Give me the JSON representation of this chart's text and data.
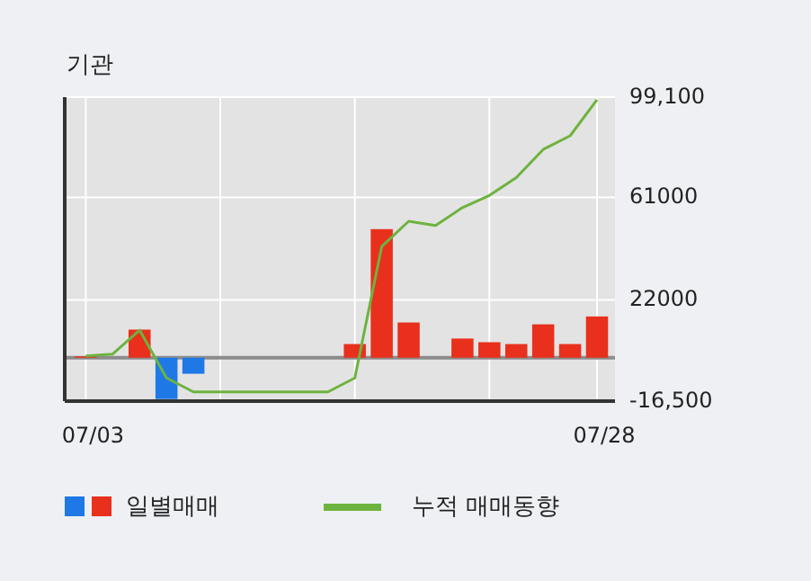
{
  "chart_data": {
    "type": "bar",
    "title": "기관",
    "categories": [
      "07/03",
      null,
      null,
      null,
      null,
      null,
      null,
      null,
      null,
      null,
      null,
      null,
      null,
      null,
      null,
      null,
      null,
      null,
      null,
      "07/28"
    ],
    "series": [
      {
        "name": "일별매매",
        "values": [
          500,
          0,
          10700,
          -15700,
          -6100,
          0,
          0,
          0,
          0,
          0,
          5200,
          48900,
          13400,
          0,
          7300,
          5900,
          5200,
          12700,
          5200,
          15700
        ],
        "colors": [
          "#e8301c",
          "#e8301c",
          "#e8301c",
          "#1e78e6",
          "#1e78e6",
          "#e8301c",
          "#e8301c",
          "#e8301c",
          "#e8301c",
          "#e8301c",
          "#e8301c",
          "#e8301c",
          "#e8301c",
          "#e8301c",
          "#e8301c",
          "#e8301c",
          "#e8301c",
          "#e8301c",
          "#e8301c",
          "#e8301c"
        ]
      },
      {
        "name": "누적 매매동향",
        "type": "line",
        "color": "#6db33f",
        "values": [
          700,
          1400,
          10500,
          -7700,
          -13000,
          -13000,
          -13000,
          -13000,
          -13000,
          -13000,
          -7700,
          42300,
          51900,
          50300,
          57100,
          61700,
          68500,
          79200,
          84400,
          98100
        ]
      }
    ],
    "ylim": [
      -16500,
      99100
    ],
    "yticks": [
      {
        "value": 99100,
        "label": "99,100"
      },
      61000,
      22000,
      {
        "value": -16500,
        "label": "-16,500"
      }
    ],
    "ref_lines": [
      {
        "axis": "y",
        "value": 0,
        "color": "#8c8c8c"
      }
    ],
    "grid": true,
    "legend": "bottom"
  }
}
